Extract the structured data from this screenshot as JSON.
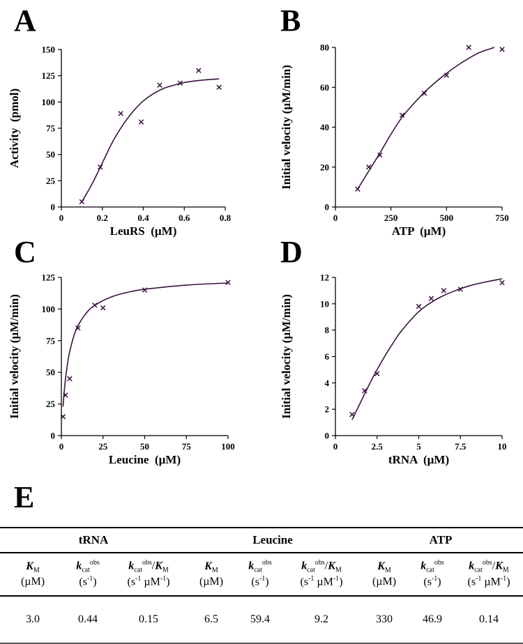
{
  "panel_labels": [
    "A",
    "B",
    "C",
    "D",
    "E"
  ],
  "colors": {
    "series": "#3a1040"
  },
  "chart_data": [
    {
      "type": "scatter",
      "panel": "A",
      "xlabel": "LeuRS  (µM)",
      "ylabel": "Activity  (pmol)",
      "xlim": [
        0,
        0.8
      ],
      "ylim": [
        0,
        150
      ],
      "xticks": [
        0,
        0.2,
        0.4,
        0.6,
        0.8
      ],
      "xticklabels": [
        "0",
        "0.2",
        "0.4",
        "0.6",
        "0.8"
      ],
      "yticks": [
        0,
        25,
        50,
        75,
        100,
        125,
        150
      ],
      "yticklabels": [
        "0",
        "25",
        "50",
        "75",
        "100",
        "125",
        "150"
      ],
      "points": {
        "x": [
          0.1,
          0.19,
          0.29,
          0.39,
          0.48,
          0.58,
          0.67,
          0.77
        ],
        "y": [
          5,
          38,
          89,
          81,
          116,
          118,
          130,
          114
        ]
      },
      "fit": {
        "x": [
          0.1,
          0.15,
          0.2,
          0.25,
          0.3,
          0.35,
          0.4,
          0.45,
          0.5,
          0.55,
          0.6,
          0.65,
          0.7,
          0.77
        ],
        "y": [
          5,
          22,
          42,
          62,
          78,
          91,
          101,
          108,
          113,
          116,
          118.5,
          120,
          121,
          122
        ]
      }
    },
    {
      "type": "scatter",
      "panel": "B",
      "xlabel": "ATP  (µM)",
      "ylabel": "Initial velocity (µM/min)",
      "xlim": [
        0,
        750
      ],
      "ylim": [
        0,
        80
      ],
      "xticks": [
        0,
        250,
        500,
        750
      ],
      "xticklabels": [
        "0",
        "250",
        "500",
        "750"
      ],
      "yticks": [
        0,
        20,
        40,
        60,
        80
      ],
      "yticklabels": [
        "0",
        "20",
        "40",
        "60",
        "80"
      ],
      "points": {
        "x": [
          100,
          150,
          200,
          300,
          400,
          500,
          600,
          750
        ],
        "y": [
          9,
          20,
          26,
          46,
          57,
          66,
          80,
          79
        ]
      },
      "fit": {
        "x": [
          100,
          150,
          200,
          250,
          300,
          350,
          400,
          450,
          500,
          550,
          600,
          650,
          715
        ],
        "y": [
          9,
          18,
          27,
          36.5,
          45,
          51.5,
          57.5,
          62.5,
          67,
          71,
          74.5,
          77.5,
          80
        ]
      }
    },
    {
      "type": "scatter",
      "panel": "C",
      "xlabel": "Leucine  (µM)",
      "ylabel": "Initial velocity (µM/min)",
      "xlim": [
        0,
        100
      ],
      "ylim": [
        0,
        125
      ],
      "xticks": [
        0,
        25,
        50,
        75,
        100
      ],
      "xticklabels": [
        "0",
        "25",
        "50",
        "75",
        "100"
      ],
      "yticks": [
        0,
        25,
        50,
        75,
        100,
        125
      ],
      "yticklabels": [
        "0",
        "25",
        "50",
        "75",
        "100",
        "125"
      ],
      "points": {
        "x": [
          1,
          2.5,
          5,
          10,
          20,
          25,
          50,
          100
        ],
        "y": [
          15,
          32,
          45,
          85,
          103,
          101,
          115,
          121
        ]
      },
      "fit": {
        "x": [
          1,
          2,
          3,
          4,
          5,
          7.5,
          10,
          15,
          20,
          30,
          40,
          50,
          75,
          100
        ],
        "y": [
          22.9,
          38.8,
          50.4,
          59.3,
          66.3,
          78.8,
          86.9,
          96.9,
          102.9,
          109.6,
          113.3,
          115.6,
          118.9,
          120.6
        ]
      }
    },
    {
      "type": "scatter",
      "panel": "D",
      "xlabel": "tRNA  (µM)",
      "ylabel": "Initial velocity (µM/min)",
      "xlim": [
        0,
        10
      ],
      "ylim": [
        0,
        12
      ],
      "xticks": [
        0,
        2.5,
        5,
        7.5,
        10
      ],
      "xticklabels": [
        "0",
        "2.5",
        "5",
        "7.5",
        "10"
      ],
      "yticks": [
        0,
        2,
        4,
        6,
        8,
        10,
        12
      ],
      "yticklabels": [
        "0",
        "2",
        "4",
        "6",
        "8",
        "10",
        "12"
      ],
      "points": {
        "x": [
          1,
          1.75,
          2.5,
          5,
          5.75,
          6.5,
          7.5,
          10
        ],
        "y": [
          1.6,
          3.4,
          4.7,
          9.8,
          10.4,
          11.0,
          11.1,
          11.6
        ]
      },
      "fit": {
        "x": [
          1,
          1.5,
          2,
          2.5,
          3,
          3.5,
          4,
          5,
          6,
          7,
          8,
          9,
          10
        ],
        "y": [
          1.2,
          2.5,
          3.8,
          5,
          6.1,
          7.1,
          8,
          9.4,
          10.3,
          10.9,
          11.35,
          11.65,
          11.9
        ]
      }
    }
  ],
  "table": {
    "groups": [
      "tRNA",
      "Leucine",
      "ATP"
    ],
    "km_label": "K",
    "km_sub": "M",
    "km_unit": "(µM)",
    "kcat_label": "k",
    "kcat_sub": "cat",
    "kcat_sup": "obs",
    "kcat_unit": "(s",
    "kcat_unit_sup": "-1",
    "close": ")",
    "ratio_slash": "/",
    "ratio_unit": "(s",
    "ratio_unit_mid": " µM",
    "ratio_unit_sup": "-1",
    "values": [
      "3.0",
      "0.44",
      "0.15",
      "6.5",
      "59.4",
      "9.2",
      "330",
      "46.9",
      "0.14"
    ]
  }
}
